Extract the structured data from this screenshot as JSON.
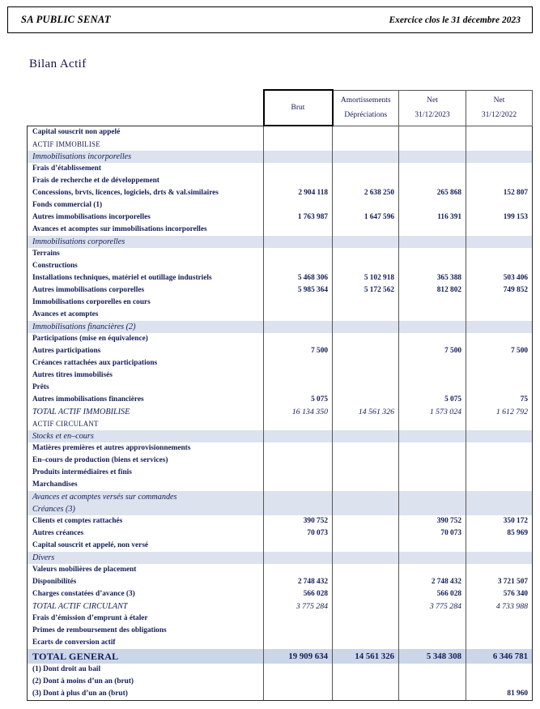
{
  "page_header": {
    "company": "SA PUBLIC SENAT",
    "closing": "Exercice clos le 31 décembre 2023"
  },
  "document_title": "Bilan Actif",
  "colors": {
    "text_navy": "#131c55",
    "subsection_background": "#dce2ee",
    "grand_total_background": "#ccd6e9"
  },
  "table": {
    "column_headers": [
      {
        "lines": [
          "Brut"
        ],
        "emphasized": true
      },
      {
        "lines": [
          "Amortissements",
          "Dépréciations"
        ],
        "emphasized": false
      },
      {
        "lines": [
          "Net",
          "31/12/2023"
        ],
        "emphasized": false
      },
      {
        "lines": [
          "Net",
          "31/12/2022"
        ],
        "emphasized": false
      }
    ],
    "rows": [
      {
        "label": "Capital souscrit non appelé",
        "type": "item",
        "values": [
          "",
          "",
          "",
          ""
        ]
      },
      {
        "label": "ACTIF IMMOBILISE",
        "type": "section",
        "values": [
          "",
          "",
          "",
          ""
        ]
      },
      {
        "label": "Immobilisations incorporelles",
        "type": "subsection",
        "values": [
          "",
          "",
          "",
          ""
        ]
      },
      {
        "label": "Frais d’établissement",
        "type": "item",
        "values": [
          "",
          "",
          "",
          ""
        ]
      },
      {
        "label": "Frais de recherche et de développement",
        "type": "item",
        "values": [
          "",
          "",
          "",
          ""
        ]
      },
      {
        "label": "Concessions, brvts, licences, logiciels, drts & val.similaires",
        "type": "item",
        "values": [
          "2 904 118",
          "2 638 250",
          "265 868",
          "152 807"
        ]
      },
      {
        "label": "Fonds commercial (1)",
        "type": "item",
        "values": [
          "",
          "",
          "",
          ""
        ]
      },
      {
        "label": "Autres immobilisations incorporelles",
        "type": "item",
        "values": [
          "1 763 987",
          "1 647 596",
          "116 391",
          "199 153"
        ]
      },
      {
        "label": "Avances et acomptes sur immobilisations incorporelles",
        "type": "item",
        "values": [
          "",
          "",
          "",
          ""
        ]
      },
      {
        "label": "Immobilisations corporelles",
        "type": "subsection",
        "values": [
          "",
          "",
          "",
          ""
        ]
      },
      {
        "label": "Terrains",
        "type": "item",
        "values": [
          "",
          "",
          "",
          ""
        ]
      },
      {
        "label": "Constructions",
        "type": "item",
        "values": [
          "",
          "",
          "",
          ""
        ]
      },
      {
        "label": "Installations techniques, matériel et outillage industriels",
        "type": "item",
        "values": [
          "5 468 306",
          "5 102 918",
          "365 388",
          "503 406"
        ]
      },
      {
        "label": "Autres immobilisations corporelles",
        "type": "item",
        "values": [
          "5 985 364",
          "5 172 562",
          "812 802",
          "749 852"
        ]
      },
      {
        "label": "Immobilisations corporelles en cours",
        "type": "item",
        "values": [
          "",
          "",
          "",
          ""
        ]
      },
      {
        "label": "Avances et acomptes",
        "type": "item",
        "values": [
          "",
          "",
          "",
          ""
        ]
      },
      {
        "label": "Immobilisations financières (2)",
        "type": "subsection",
        "values": [
          "",
          "",
          "",
          ""
        ]
      },
      {
        "label": "Participations (mise en équivalence)",
        "type": "item",
        "values": [
          "",
          "",
          "",
          ""
        ]
      },
      {
        "label": "Autres participations",
        "type": "item",
        "values": [
          "7 500",
          "",
          "7 500",
          "7 500"
        ]
      },
      {
        "label": "Créances rattachées aux participations",
        "type": "item",
        "values": [
          "",
          "",
          "",
          ""
        ]
      },
      {
        "label": "Autres titres immobilisés",
        "type": "item",
        "values": [
          "",
          "",
          "",
          ""
        ]
      },
      {
        "label": "Prêts",
        "type": "item",
        "values": [
          "",
          "",
          "",
          ""
        ]
      },
      {
        "label": "Autres immobilisations financières",
        "type": "item",
        "values": [
          "5 075",
          "",
          "5 075",
          "75"
        ]
      },
      {
        "label": "TOTAL ACTIF IMMOBILISE",
        "type": "total",
        "values": [
          "16 134 350",
          "14 561 326",
          "1 573 024",
          "1 612 792"
        ]
      },
      {
        "label": "ACTIF CIRCULANT",
        "type": "section",
        "values": [
          "",
          "",
          "",
          ""
        ]
      },
      {
        "label": "Stocks et en–cours",
        "type": "subsection",
        "values": [
          "",
          "",
          "",
          ""
        ]
      },
      {
        "label": "Matières premières et autres approvisionnements",
        "type": "item",
        "values": [
          "",
          "",
          "",
          ""
        ]
      },
      {
        "label": "En–cours de production (biens et services)",
        "type": "item",
        "values": [
          "",
          "",
          "",
          ""
        ]
      },
      {
        "label": "Produits intermédiaires et finis",
        "type": "item",
        "values": [
          "",
          "",
          "",
          ""
        ]
      },
      {
        "label": "Marchandises",
        "type": "item",
        "values": [
          "",
          "",
          "",
          ""
        ]
      },
      {
        "label": "Avances et acomptes versés sur commandes",
        "type": "subsection",
        "values": [
          "",
          "",
          "",
          ""
        ]
      },
      {
        "label": "Créances (3)",
        "type": "subsection",
        "values": [
          "",
          "",
          "",
          ""
        ]
      },
      {
        "label": "Clients et comptes rattachés",
        "type": "item",
        "values": [
          "390 752",
          "",
          "390 752",
          "350 172"
        ]
      },
      {
        "label": "Autres créances",
        "type": "item",
        "values": [
          "70 073",
          "",
          "70 073",
          "85 969"
        ]
      },
      {
        "label": "Capital souscrit et appelé, non versé",
        "type": "item",
        "values": [
          "",
          "",
          "",
          ""
        ]
      },
      {
        "label": "Divers",
        "type": "subsection",
        "values": [
          "",
          "",
          "",
          ""
        ]
      },
      {
        "label": "Valeurs mobilières de placement",
        "type": "item",
        "values": [
          "",
          "",
          "",
          ""
        ]
      },
      {
        "label": "Disponibilités",
        "type": "item",
        "values": [
          "2 748 432",
          "",
          "2 748 432",
          "3 721 507"
        ]
      },
      {
        "label": "Charges constatées d’avance (3)",
        "type": "item",
        "values": [
          "566 028",
          "",
          "566 028",
          "576 340"
        ]
      },
      {
        "label": "TOTAL ACTIF CIRCULANT",
        "type": "total",
        "values": [
          "3 775 284",
          "",
          "3 775 284",
          "4 733 988"
        ]
      },
      {
        "label": "Frais d’émission d’emprunt à étaler",
        "type": "item",
        "values": [
          "",
          "",
          "",
          ""
        ]
      },
      {
        "label": "Primes de remboursement des obligations",
        "type": "item",
        "values": [
          "",
          "",
          "",
          ""
        ]
      },
      {
        "label": "Ecarts de conversion actif",
        "type": "item",
        "values": [
          "",
          "",
          "",
          ""
        ]
      },
      {
        "label": "TOTAL GENERAL",
        "type": "grandtotal",
        "values": [
          "19 909 634",
          "14 561 326",
          "5 348 308",
          "6 346 781"
        ]
      },
      {
        "label": "(1) Dont droit au bail",
        "type": "item",
        "values": [
          "",
          "",
          "",
          ""
        ]
      },
      {
        "label": "(2) Dont à moins d’un an (brut)",
        "type": "item",
        "values": [
          "",
          "",
          "",
          ""
        ]
      },
      {
        "label": "(3) Dont à plus d’un an (brut)",
        "type": "item",
        "values": [
          "",
          "",
          "",
          "81 960"
        ]
      }
    ]
  }
}
